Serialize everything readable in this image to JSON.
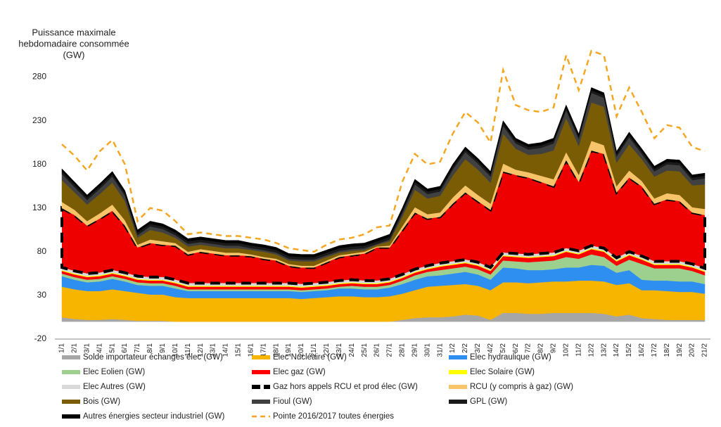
{
  "chart_data": {
    "type": "stacked_area",
    "y_label_lines": [
      "Puissance maximale",
      "hebdomadaire consommée",
      "(GW)"
    ],
    "categories": [
      "1/1",
      "2/1",
      "3/1",
      "4/1",
      "5/1",
      "6/1",
      "7/1",
      "8/1",
      "9/1",
      "10/1",
      "11/1",
      "12/1",
      "13/1",
      "14/1",
      "15/1",
      "16/1",
      "17/1",
      "18/1",
      "19/1",
      "20/1",
      "21/1",
      "22/1",
      "23/1",
      "24/1",
      "25/1",
      "26/1",
      "27/1",
      "28/1",
      "29/1",
      "30/1",
      "31/1",
      "1/2",
      "2/2",
      "3/2",
      "4/2",
      "5/2",
      "6/2",
      "7/2",
      "8/2",
      "9/2",
      "10/2",
      "11/2",
      "12/2",
      "13/2",
      "14/2",
      "15/2",
      "16/2",
      "17/2",
      "18/2",
      "19/2",
      "20/2",
      "21/2"
    ],
    "ylim": [
      -20,
      336
    ],
    "yticks": [
      -20,
      30,
      80,
      130,
      180,
      230,
      280
    ],
    "series": [
      {
        "name": "Solde importateur échanges élec (GW)",
        "color": "#a6a6a6",
        "values": [
          5,
          3,
          2,
          2,
          3,
          2,
          1,
          1,
          1,
          0,
          0,
          0,
          0,
          0,
          0,
          0,
          0,
          0,
          0,
          0,
          0,
          0,
          0,
          0,
          0,
          0,
          0,
          2,
          4,
          5,
          5,
          6,
          8,
          7,
          2,
          10,
          10,
          9,
          9,
          10,
          10,
          10,
          10,
          9,
          6,
          8,
          4,
          3,
          2,
          2,
          2,
          2
        ]
      },
      {
        "name": "Elec Nucléaire (GW)",
        "color": "#f7b500",
        "values": [
          35,
          34,
          33,
          33,
          34,
          33,
          32,
          30,
          30,
          28,
          27,
          27,
          27,
          27,
          27,
          27,
          27,
          27,
          27,
          26,
          27,
          28,
          29,
          29,
          28,
          28,
          29,
          30,
          32,
          35,
          36,
          36,
          35,
          34,
          34,
          35,
          35,
          35,
          36,
          36,
          36,
          37,
          37,
          37,
          36,
          36,
          32,
          33,
          33,
          32,
          32,
          30
        ]
      },
      {
        "name": "Elec hydraulique (GW)",
        "color": "#2f8ff0",
        "values": [
          12,
          11,
          10,
          11,
          12,
          11,
          9,
          10,
          10,
          10,
          8,
          8,
          8,
          8,
          8,
          8,
          8,
          8,
          8,
          8,
          8,
          8,
          9,
          9,
          9,
          9,
          10,
          11,
          12,
          12,
          12,
          13,
          14,
          13,
          12,
          17,
          16,
          15,
          14,
          14,
          16,
          15,
          18,
          18,
          14,
          15,
          12,
          11,
          12,
          12,
          12,
          11
        ]
      },
      {
        "name": "Elec Eolien (GW)",
        "color": "#9dd08f",
        "values": [
          3,
          3,
          3,
          3,
          3,
          3,
          3,
          3,
          3,
          3,
          2,
          2,
          2,
          2,
          2,
          2,
          2,
          2,
          2,
          2,
          2,
          2,
          2,
          3,
          3,
          3,
          3,
          4,
          5,
          5,
          6,
          6,
          6,
          6,
          6,
          8,
          8,
          9,
          10,
          10,
          12,
          10,
          12,
          10,
          8,
          12,
          18,
          14,
          14,
          15,
          12,
          10
        ]
      },
      {
        "name": "Elec gaz (GW)",
        "color": "#ff0000",
        "values": [
          3,
          3,
          3,
          3,
          3,
          3,
          3,
          3,
          3,
          3,
          3,
          3,
          3,
          3,
          3,
          3,
          3,
          3,
          3,
          3,
          3,
          3,
          3,
          3,
          3,
          3,
          3,
          3,
          3,
          3,
          4,
          4,
          4,
          4,
          4,
          5,
          5,
          5,
          5,
          5,
          6,
          5,
          6,
          6,
          5,
          5,
          5,
          4,
          4,
          4,
          4,
          4
        ]
      },
      {
        "name": "Elec Solaire (GW)",
        "color": "#ffff00",
        "values": [
          1,
          1,
          1,
          1,
          1,
          1,
          1,
          1,
          1,
          1,
          1,
          1,
          1,
          1,
          1,
          1,
          1,
          1,
          1,
          1,
          1,
          1,
          1,
          1,
          1,
          1,
          1,
          1,
          1,
          1,
          1,
          1,
          1,
          1,
          1,
          1,
          1,
          1,
          1,
          1,
          1,
          1,
          1,
          1,
          1,
          1,
          1,
          1,
          1,
          1,
          1,
          1
        ]
      },
      {
        "name": "Elec Autres (GW)",
        "color": "#d9d9d9",
        "values": [
          3,
          3,
          3,
          3,
          3,
          3,
          3,
          3,
          3,
          3,
          3,
          3,
          3,
          3,
          3,
          3,
          3,
          3,
          3,
          3,
          3,
          3,
          3,
          3,
          3,
          3,
          3,
          3,
          3,
          3,
          3,
          3,
          3,
          3,
          3,
          3,
          3,
          3,
          3,
          3,
          3,
          3,
          3,
          3,
          3,
          3,
          3,
          3,
          3,
          3,
          3,
          3
        ]
      },
      {
        "name": "Gaz hors appels RCU et prod élec (GW)",
        "color": "#ee0000",
        "border": "#000000",
        "line_style": "dashed",
        "values": [
          68,
          64,
          55,
          62,
          68,
          54,
          33,
          39,
          37,
          39,
          33,
          36,
          34,
          32,
          32,
          31,
          28,
          26,
          20,
          19,
          18,
          23,
          27,
          28,
          31,
          38,
          36,
          51,
          65,
          54,
          53,
          66,
          77,
          70,
          66,
          93,
          90,
          88,
          82,
          76,
          101,
          79,
          109,
          108,
          75,
          85,
          80,
          66,
          71,
          69,
          59,
          61
        ]
      },
      {
        "name": "RCU (y compris à gaz) (GW)",
        "color": "#f8c46a",
        "values": [
          7,
          6,
          5,
          6,
          7,
          6,
          3,
          4,
          4,
          3,
          3,
          3,
          3,
          3,
          3,
          2,
          2,
          2,
          2,
          2,
          2,
          2,
          2,
          2,
          2,
          1,
          2,
          4,
          6,
          5,
          5,
          7,
          8,
          7,
          7,
          9,
          6,
          6,
          7,
          8,
          9,
          8,
          11,
          10,
          7,
          8,
          6,
          6,
          7,
          7,
          6,
          7
        ]
      },
      {
        "name": "Bois (GW)",
        "color": "#7a5c05",
        "values": [
          25,
          20,
          19,
          22,
          25,
          22,
          8,
          11,
          10,
          6,
          6,
          5,
          5,
          5,
          5,
          5,
          6,
          5,
          4,
          5,
          5,
          4,
          3,
          3,
          2,
          2,
          5,
          11,
          20,
          18,
          19,
          25,
          30,
          29,
          24,
          34,
          24,
          20,
          25,
          33,
          39,
          33,
          44,
          44,
          27,
          30,
          25,
          25,
          26,
          27,
          25,
          28
        ]
      },
      {
        "name": "Fioul (GW)",
        "color": "#404040",
        "values": [
          7,
          6,
          5,
          6,
          7,
          6,
          3,
          4,
          4,
          3,
          3,
          3,
          3,
          3,
          3,
          2,
          2,
          2,
          2,
          2,
          2,
          2,
          2,
          2,
          2,
          1,
          2,
          4,
          6,
          5,
          5,
          7,
          8,
          7,
          7,
          9,
          6,
          6,
          7,
          8,
          9,
          8,
          11,
          10,
          7,
          8,
          6,
          6,
          7,
          7,
          6,
          7
        ]
      },
      {
        "name": "GPL  (GW)",
        "color": "#1a1a1a",
        "values": [
          3,
          3,
          3,
          3,
          3,
          3,
          3,
          3,
          3,
          3,
          3,
          3,
          3,
          3,
          3,
          3,
          3,
          3,
          3,
          3,
          3,
          3,
          3,
          3,
          3,
          3,
          3,
          3,
          3,
          3,
          3,
          3,
          3,
          3,
          3,
          3,
          3,
          3,
          3,
          3,
          3,
          3,
          3,
          3,
          3,
          3,
          3,
          3,
          3,
          3,
          3,
          3
        ]
      },
      {
        "name": "Autres énergies secteur industriel (GW)",
        "color": "#000000",
        "values": [
          3,
          3,
          3,
          3,
          3,
          3,
          3,
          3,
          3,
          3,
          3,
          3,
          3,
          3,
          3,
          3,
          3,
          3,
          3,
          3,
          3,
          3,
          3,
          3,
          3,
          3,
          3,
          3,
          3,
          3,
          3,
          3,
          3,
          3,
          3,
          3,
          3,
          3,
          3,
          3,
          3,
          3,
          3,
          3,
          3,
          3,
          3,
          3,
          3,
          3,
          3,
          3
        ]
      },
      {
        "name": "Pointe 2016/2017 toutes énergies",
        "color": "#f5a623",
        "kind": "line",
        "line_style": "dashed",
        "values": [
          203,
          190,
          173,
          195,
          208,
          180,
          115,
          130,
          127,
          115,
          100,
          102,
          100,
          98,
          98,
          96,
          94,
          90,
          84,
          82,
          80,
          88,
          94,
          96,
          100,
          108,
          110,
          160,
          192,
          180,
          183,
          215,
          240,
          228,
          205,
          288,
          248,
          242,
          240,
          245,
          305,
          265,
          310,
          305,
          235,
          268,
          240,
          210,
          225,
          222,
          200,
          195
        ]
      }
    ]
  }
}
